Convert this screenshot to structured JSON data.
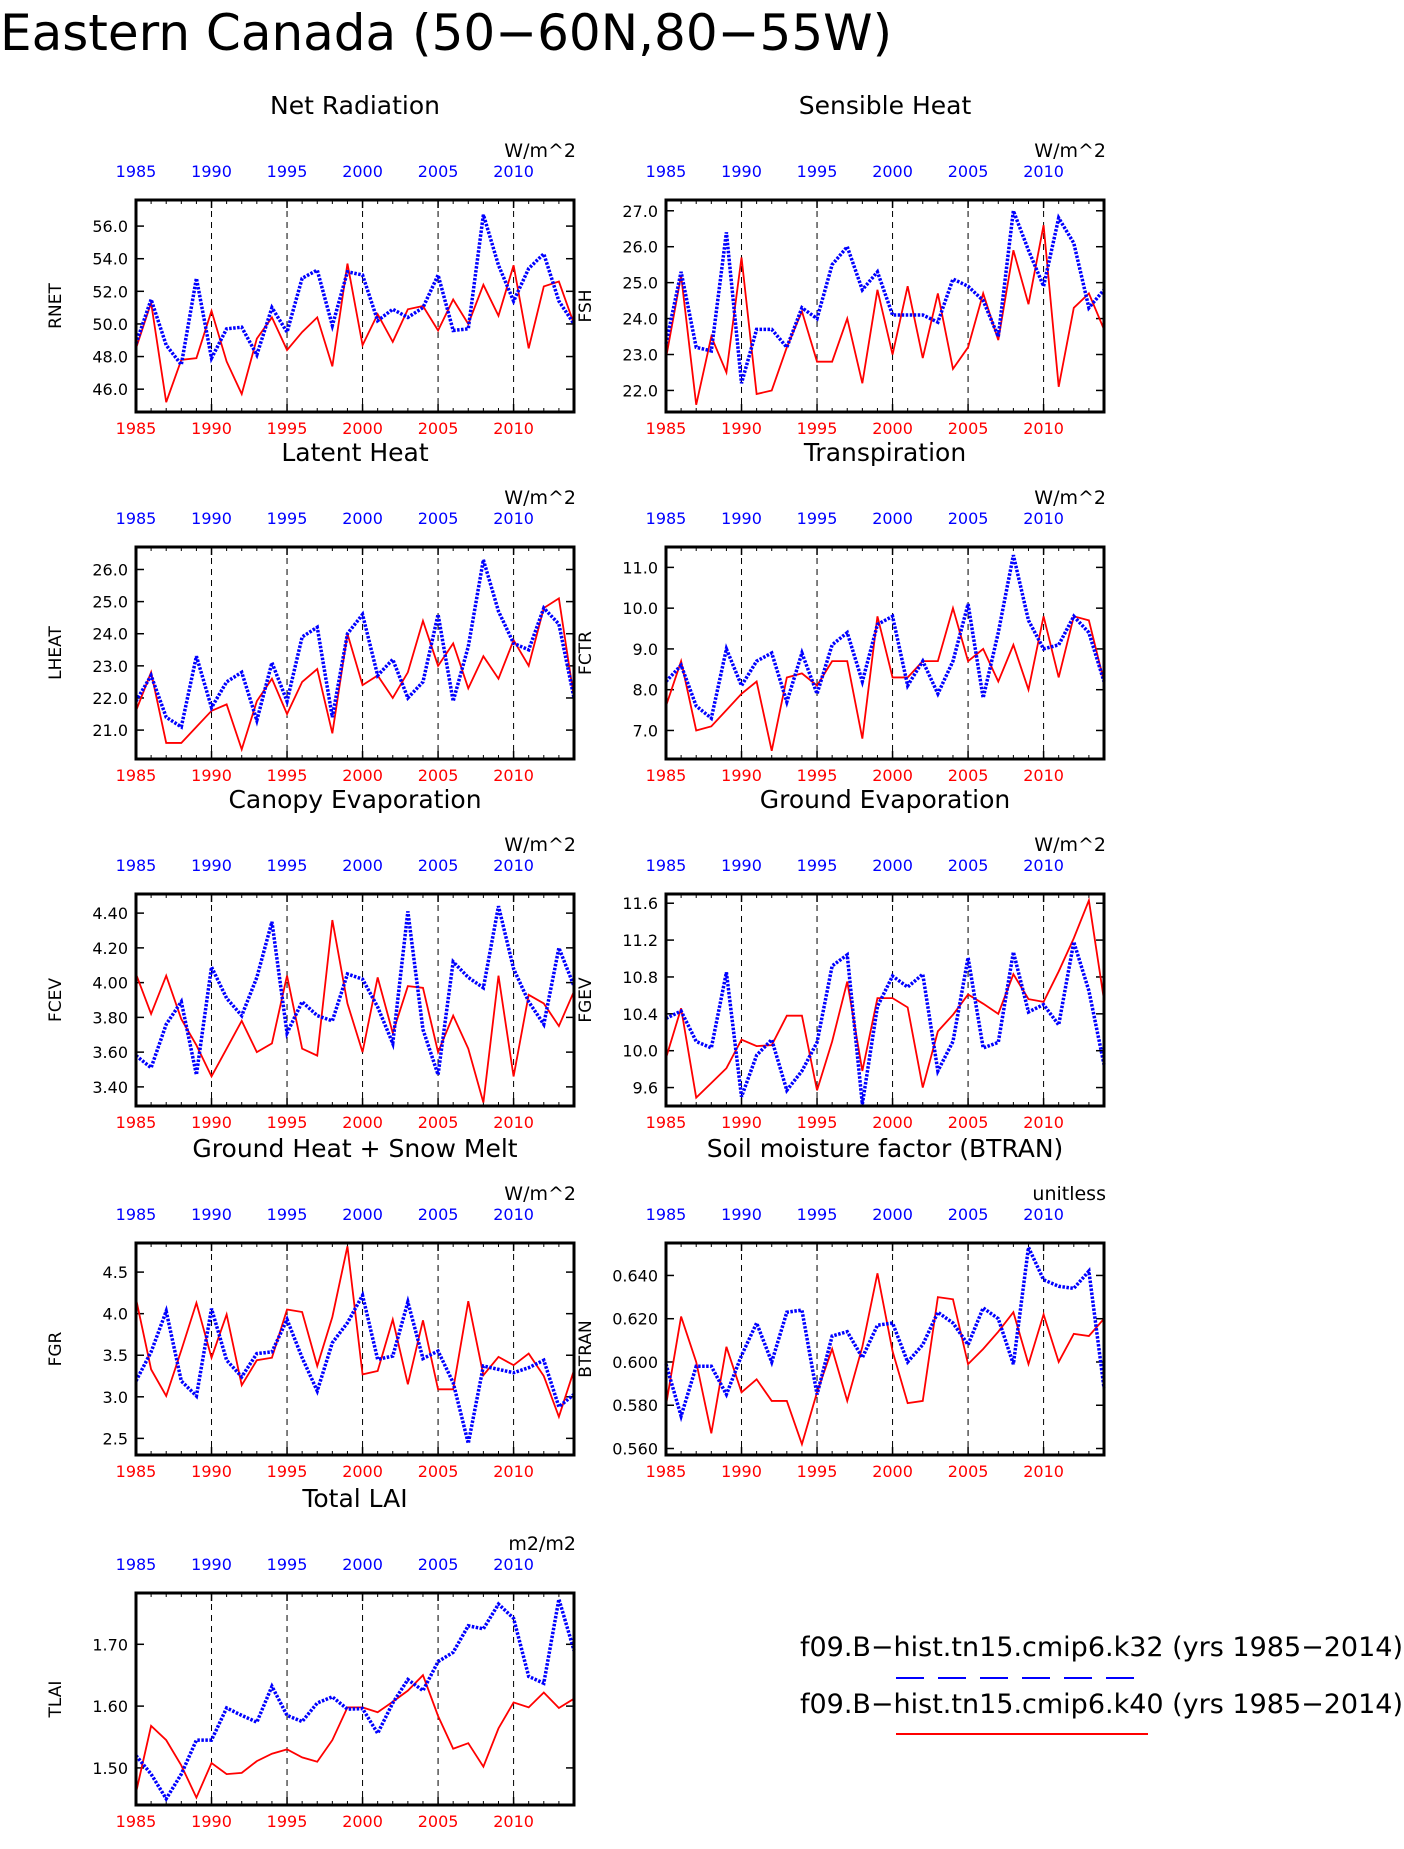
{
  "page_title": "Eastern Canada (50−60N,80−55W)",
  "colors": {
    "series_k32": "#0000ff",
    "series_k40": "#ff0000",
    "axis": "#000000"
  },
  "legend": {
    "entries": [
      {
        "label": "f09.B−hist.tn15.cmip6.k32 (yrs 1985−2014)",
        "color": "#0000ff",
        "style": "dashed"
      },
      {
        "label": "f09.B−hist.tn15.cmip6.k40 (yrs 1985−2014)",
        "color": "#ff0000",
        "style": "solid"
      }
    ]
  },
  "chart_data": [
    {
      "type": "line",
      "title": "Net Radiation",
      "ylabel": "RNET",
      "units": "W/m^2",
      "ylim": [
        44.6,
        57.6
      ],
      "yticks": [
        46,
        48,
        50,
        52,
        54,
        56
      ],
      "ytick_labels": [
        "46.0",
        "48.0",
        "50.0",
        "52.0",
        "54.0",
        "56.0"
      ],
      "x_start": 1985,
      "x_end": 2014,
      "xtick_labels": [
        "1985",
        "1990",
        "1995",
        "2000",
        "2005",
        "2010"
      ],
      "series": [
        {
          "values": [
            48.8,
            51.5,
            48.7,
            47.5,
            52.8,
            47.9,
            49.7,
            49.8,
            48.1,
            51.0,
            49.5,
            52.8,
            53.3,
            49.9,
            53.2,
            53.0,
            50.2,
            50.9,
            50.4,
            51.0,
            53.0,
            49.6,
            49.7,
            56.7,
            53.6,
            51.4,
            53.4,
            54.3,
            51.4,
            50.0
          ]
        },
        {
          "values": [
            48.5,
            51.3,
            45.2,
            47.8,
            47.9,
            50.8,
            47.7,
            45.7,
            49.1,
            50.4,
            48.4,
            49.5,
            50.4,
            47.4,
            53.7,
            48.7,
            50.6,
            48.9,
            50.9,
            51.1,
            49.6,
            51.5,
            50.0,
            52.4,
            50.5,
            53.6,
            48.5,
            52.3,
            52.6,
            50.0
          ]
        }
      ]
    },
    {
      "type": "line",
      "title": "Sensible Heat",
      "ylabel": "FSH",
      "units": "W/m^2",
      "ylim": [
        21.4,
        27.3
      ],
      "yticks": [
        22,
        23,
        24,
        25,
        26,
        27
      ],
      "ytick_labels": [
        "22.0",
        "23.0",
        "24.0",
        "25.0",
        "26.0",
        "27.0"
      ],
      "x_start": 1985,
      "x_end": 2014,
      "xtick_labels": [
        "1985",
        "1990",
        "1995",
        "2000",
        "2005",
        "2010"
      ],
      "series": [
        {
          "values": [
            23.3,
            25.3,
            23.2,
            23.1,
            26.4,
            22.2,
            23.7,
            23.7,
            23.2,
            24.3,
            24.0,
            25.5,
            26.0,
            24.8,
            25.3,
            24.1,
            24.1,
            24.1,
            23.9,
            25.1,
            24.9,
            24.5,
            23.5,
            27.0,
            25.9,
            24.9,
            26.8,
            26.1,
            24.3,
            24.8
          ]
        },
        {
          "values": [
            22.9,
            25.2,
            21.6,
            23.5,
            22.5,
            25.7,
            21.9,
            22.0,
            23.2,
            24.2,
            22.8,
            22.8,
            24.0,
            22.2,
            24.8,
            23.0,
            24.9,
            22.9,
            24.7,
            22.6,
            23.2,
            24.7,
            23.4,
            25.9,
            24.4,
            26.6,
            22.1,
            24.3,
            24.7,
            23.7
          ]
        }
      ]
    },
    {
      "type": "line",
      "title": "Latent Heat",
      "ylabel": "LHEAT",
      "units": "W/m^2",
      "ylim": [
        20.1,
        26.7
      ],
      "yticks": [
        21,
        22,
        23,
        24,
        25,
        26
      ],
      "ytick_labels": [
        "21.0",
        "22.0",
        "23.0",
        "24.0",
        "25.0",
        "26.0"
      ],
      "x_start": 1985,
      "x_end": 2014,
      "xtick_labels": [
        "1985",
        "1990",
        "1995",
        "2000",
        "2005",
        "2010"
      ],
      "series": [
        {
          "values": [
            21.9,
            22.7,
            21.4,
            21.1,
            23.3,
            21.7,
            22.5,
            22.8,
            21.3,
            23.1,
            21.9,
            23.9,
            24.2,
            21.4,
            24.0,
            24.6,
            22.7,
            23.2,
            22.0,
            22.5,
            24.6,
            21.9,
            23.6,
            26.3,
            24.7,
            23.7,
            23.5,
            24.8,
            24.3,
            22.0
          ]
        },
        {
          "values": [
            21.6,
            22.8,
            20.6,
            20.6,
            21.1,
            21.6,
            21.8,
            20.4,
            21.9,
            22.6,
            21.5,
            22.5,
            22.9,
            20.9,
            24.0,
            22.4,
            22.7,
            22.0,
            22.8,
            24.4,
            23.0,
            23.7,
            22.3,
            23.3,
            22.6,
            23.8,
            23.0,
            24.8,
            25.1,
            22.0
          ]
        }
      ]
    },
    {
      "type": "line",
      "title": "Transpiration",
      "ylabel": "FCTR",
      "units": "W/m^2",
      "ylim": [
        6.3,
        11.5
      ],
      "yticks": [
        7,
        8,
        9,
        10,
        11
      ],
      "ytick_labels": [
        "7.0",
        "8.0",
        "9.0",
        "10.0",
        "11.0"
      ],
      "x_start": 1985,
      "x_end": 2014,
      "xtick_labels": [
        "1985",
        "1990",
        "1995",
        "2000",
        "2005",
        "2010"
      ],
      "series": [
        {
          "values": [
            8.2,
            8.6,
            7.6,
            7.3,
            9.0,
            8.1,
            8.7,
            8.9,
            7.7,
            8.9,
            7.9,
            9.1,
            9.4,
            8.2,
            9.6,
            9.8,
            8.1,
            8.7,
            7.9,
            8.7,
            10.1,
            7.8,
            9.4,
            11.3,
            9.7,
            9.0,
            9.1,
            9.8,
            9.4,
            8.2
          ]
        },
        {
          "values": [
            7.6,
            8.7,
            7.0,
            7.1,
            7.5,
            7.9,
            8.2,
            6.5,
            8.3,
            8.4,
            8.1,
            8.7,
            8.7,
            6.8,
            9.8,
            8.3,
            8.3,
            8.7,
            8.7,
            10.0,
            8.7,
            9.0,
            8.2,
            9.1,
            8.0,
            9.8,
            8.3,
            9.8,
            9.7,
            8.2
          ]
        }
      ]
    },
    {
      "type": "line",
      "title": "Canopy Evaporation",
      "ylabel": "FCEV",
      "units": "W/m^2",
      "ylim": [
        3.29,
        4.51
      ],
      "yticks": [
        3.4,
        3.6,
        3.8,
        4.0,
        4.2,
        4.4
      ],
      "ytick_labels": [
        "3.40",
        "3.60",
        "3.80",
        "4.00",
        "4.20",
        "4.40"
      ],
      "x_start": 1985,
      "x_end": 2014,
      "xtick_labels": [
        "1985",
        "1990",
        "1995",
        "2000",
        "2005",
        "2010"
      ],
      "series": [
        {
          "values": [
            3.58,
            3.51,
            3.76,
            3.89,
            3.47,
            4.09,
            3.91,
            3.81,
            4.03,
            4.35,
            3.71,
            3.89,
            3.81,
            3.78,
            4.05,
            4.02,
            3.86,
            3.65,
            4.41,
            3.73,
            3.47,
            4.12,
            4.03,
            3.97,
            4.44,
            4.08,
            3.89,
            3.76,
            4.2,
            3.98
          ]
        },
        {
          "values": [
            4.05,
            3.82,
            4.04,
            3.79,
            3.64,
            3.46,
            3.62,
            3.78,
            3.6,
            3.65,
            4.04,
            3.62,
            3.58,
            4.36,
            3.88,
            3.6,
            4.03,
            3.71,
            3.98,
            3.97,
            3.6,
            3.81,
            3.62,
            3.31,
            4.04,
            3.46,
            3.93,
            3.88,
            3.75,
            3.95
          ]
        }
      ]
    },
    {
      "type": "line",
      "title": "Ground Evaporation",
      "ylabel": "FGEV",
      "units": "W/m^2",
      "ylim": [
        9.4,
        11.7
      ],
      "yticks": [
        9.6,
        10.0,
        10.4,
        10.8,
        11.2,
        11.6
      ],
      "ytick_labels": [
        "9.6",
        "10.0",
        "10.4",
        "10.8",
        "11.2",
        "11.6"
      ],
      "x_start": 1985,
      "x_end": 2014,
      "xtick_labels": [
        "1985",
        "1990",
        "1995",
        "2000",
        "2005",
        "2010"
      ],
      "series": [
        {
          "values": [
            10.35,
            10.43,
            10.1,
            10.03,
            10.85,
            9.5,
            9.95,
            10.12,
            9.57,
            9.78,
            10.09,
            10.92,
            11.04,
            9.42,
            10.48,
            10.81,
            10.69,
            10.83,
            9.78,
            10.1,
            11.01,
            10.03,
            10.09,
            11.07,
            10.42,
            10.5,
            10.28,
            11.18,
            10.65,
            9.85
          ]
        },
        {
          "values": [
            9.92,
            10.46,
            9.49,
            9.65,
            9.81,
            10.12,
            10.05,
            10.06,
            10.38,
            10.38,
            9.57,
            10.1,
            10.75,
            9.78,
            10.57,
            10.57,
            10.47,
            9.6,
            10.21,
            10.39,
            10.61,
            10.51,
            10.4,
            10.83,
            10.56,
            10.53,
            10.86,
            11.22,
            11.63,
            10.55
          ]
        }
      ]
    },
    {
      "type": "line",
      "title": "Ground Heat + Snow Melt",
      "ylabel": "FGR",
      "units": "W/m^2",
      "ylim": [
        2.3,
        4.85
      ],
      "yticks": [
        2.5,
        3.0,
        3.5,
        4.0,
        4.5
      ],
      "ytick_labels": [
        "2.5",
        "3.0",
        "3.5",
        "4.0",
        "4.5"
      ],
      "x_start": 1985,
      "x_end": 2014,
      "xtick_labels": [
        "1985",
        "1990",
        "1995",
        "2000",
        "2005",
        "2010"
      ],
      "series": [
        {
          "values": [
            3.19,
            3.54,
            4.03,
            3.19,
            3.01,
            4.06,
            3.44,
            3.24,
            3.52,
            3.54,
            3.93,
            3.47,
            3.07,
            3.65,
            3.89,
            4.22,
            3.45,
            3.49,
            4.14,
            3.46,
            3.55,
            3.17,
            2.44,
            3.37,
            3.33,
            3.29,
            3.35,
            3.44,
            2.88,
            3.03
          ]
        },
        {
          "values": [
            4.18,
            3.33,
            3.01,
            3.56,
            4.13,
            3.47,
            3.99,
            3.14,
            3.44,
            3.47,
            4.05,
            4.02,
            3.37,
            3.96,
            4.81,
            3.27,
            3.31,
            3.93,
            3.15,
            3.92,
            3.09,
            3.09,
            4.15,
            3.26,
            3.48,
            3.38,
            3.52,
            3.25,
            2.76,
            3.32
          ]
        }
      ]
    },
    {
      "type": "line",
      "title": "Soil moisture factor (BTRAN)",
      "ylabel": "BTRAN",
      "units": "unitless",
      "ylim": [
        0.557,
        0.655
      ],
      "yticks": [
        0.56,
        0.58,
        0.6,
        0.62,
        0.64
      ],
      "ytick_labels": [
        "0.560",
        "0.580",
        "0.600",
        "0.620",
        "0.640"
      ],
      "x_start": 1985,
      "x_end": 2014,
      "xtick_labels": [
        "1985",
        "1990",
        "1995",
        "2000",
        "2005",
        "2010"
      ],
      "series": [
        {
          "values": [
            0.599,
            0.575,
            0.598,
            0.598,
            0.585,
            0.603,
            0.618,
            0.6,
            0.623,
            0.624,
            0.585,
            0.612,
            0.614,
            0.602,
            0.617,
            0.618,
            0.6,
            0.608,
            0.623,
            0.618,
            0.608,
            0.625,
            0.62,
            0.599,
            0.653,
            0.638,
            0.635,
            0.634,
            0.642,
            0.588
          ]
        },
        {
          "values": [
            0.58,
            0.621,
            0.6,
            0.567,
            0.607,
            0.586,
            0.592,
            0.582,
            0.582,
            0.562,
            0.586,
            0.606,
            0.582,
            0.607,
            0.641,
            0.605,
            0.581,
            0.582,
            0.63,
            0.629,
            0.599,
            0.606,
            0.614,
            0.623,
            0.599,
            0.622,
            0.6,
            0.613,
            0.612,
            0.62
          ]
        }
      ]
    },
    {
      "type": "line",
      "title": "Total LAI",
      "ylabel": "TLAI",
      "units": "m2/m2",
      "ylim": [
        1.44,
        1.783
      ],
      "yticks": [
        1.5,
        1.6,
        1.7
      ],
      "ytick_labels": [
        "1.50",
        "1.60",
        "1.70"
      ],
      "x_start": 1985,
      "x_end": 2014,
      "xtick_labels": [
        "1985",
        "1990",
        "1995",
        "2000",
        "2005",
        "2010"
      ],
      "series": [
        {
          "values": [
            1.52,
            1.49,
            1.45,
            1.49,
            1.545,
            1.545,
            1.597,
            1.585,
            1.574,
            1.632,
            1.585,
            1.575,
            1.605,
            1.615,
            1.595,
            1.596,
            1.556,
            1.605,
            1.643,
            1.625,
            1.672,
            1.687,
            1.73,
            1.725,
            1.765,
            1.742,
            1.648,
            1.637,
            1.773,
            1.69
          ]
        },
        {
          "values": [
            1.46,
            1.568,
            1.545,
            1.504,
            1.452,
            1.508,
            1.49,
            1.492,
            1.511,
            1.523,
            1.53,
            1.517,
            1.51,
            1.545,
            1.598,
            1.598,
            1.59,
            1.607,
            1.625,
            1.65,
            1.584,
            1.531,
            1.54,
            1.502,
            1.564,
            1.606,
            1.598,
            1.622,
            1.597,
            1.612
          ]
        }
      ]
    }
  ]
}
